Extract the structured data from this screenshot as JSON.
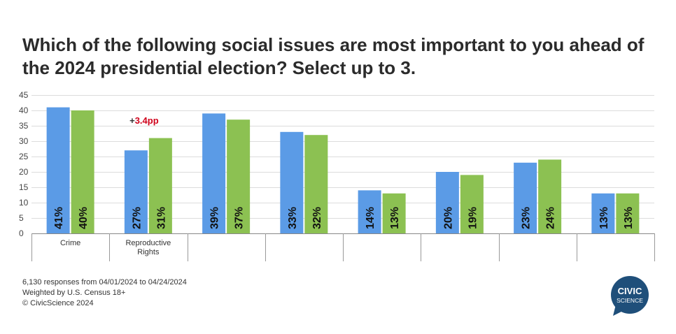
{
  "title": "Which of the following social issues are most important to you ahead of the 2024 presidential election? Select up to 3.",
  "annotation": {
    "text": "+3.4pp",
    "prefix": "+",
    "value": "3.4pp",
    "color": "#d0021b"
  },
  "footer": {
    "line1": "6,130 responses from 04/01/2024 to 04/24/2024",
    "line2": "Weighted by U.S. Census 18+",
    "line3": "© CivicScience 2024"
  },
  "logo": {
    "line1": "CIVIC",
    "line2": "SCIENCE",
    "color": "#1f4f7a"
  },
  "chart_data": {
    "type": "bar",
    "categories": [
      "Crime",
      "Reproductive Rights",
      "",
      "",
      "",
      "",
      "",
      ""
    ],
    "series": [
      {
        "values": [
          41,
          27,
          39,
          33,
          14,
          20,
          23,
          13
        ],
        "color": "#5b9be6"
      },
      {
        "values": [
          40,
          31,
          37,
          32,
          13,
          19,
          24,
          13
        ],
        "color": "#8cc152"
      }
    ],
    "data_labels": [
      [
        "41%",
        "27%",
        "39%",
        "33%",
        "14%",
        "20%",
        "23%",
        "13%"
      ],
      [
        "40%",
        "31%",
        "37%",
        "32%",
        "13%",
        "19%",
        "24%",
        "13%"
      ]
    ],
    "yticks": [
      0,
      5,
      10,
      15,
      20,
      25,
      30,
      35,
      40,
      45
    ],
    "ylim": [
      0,
      45
    ],
    "grid": true
  }
}
